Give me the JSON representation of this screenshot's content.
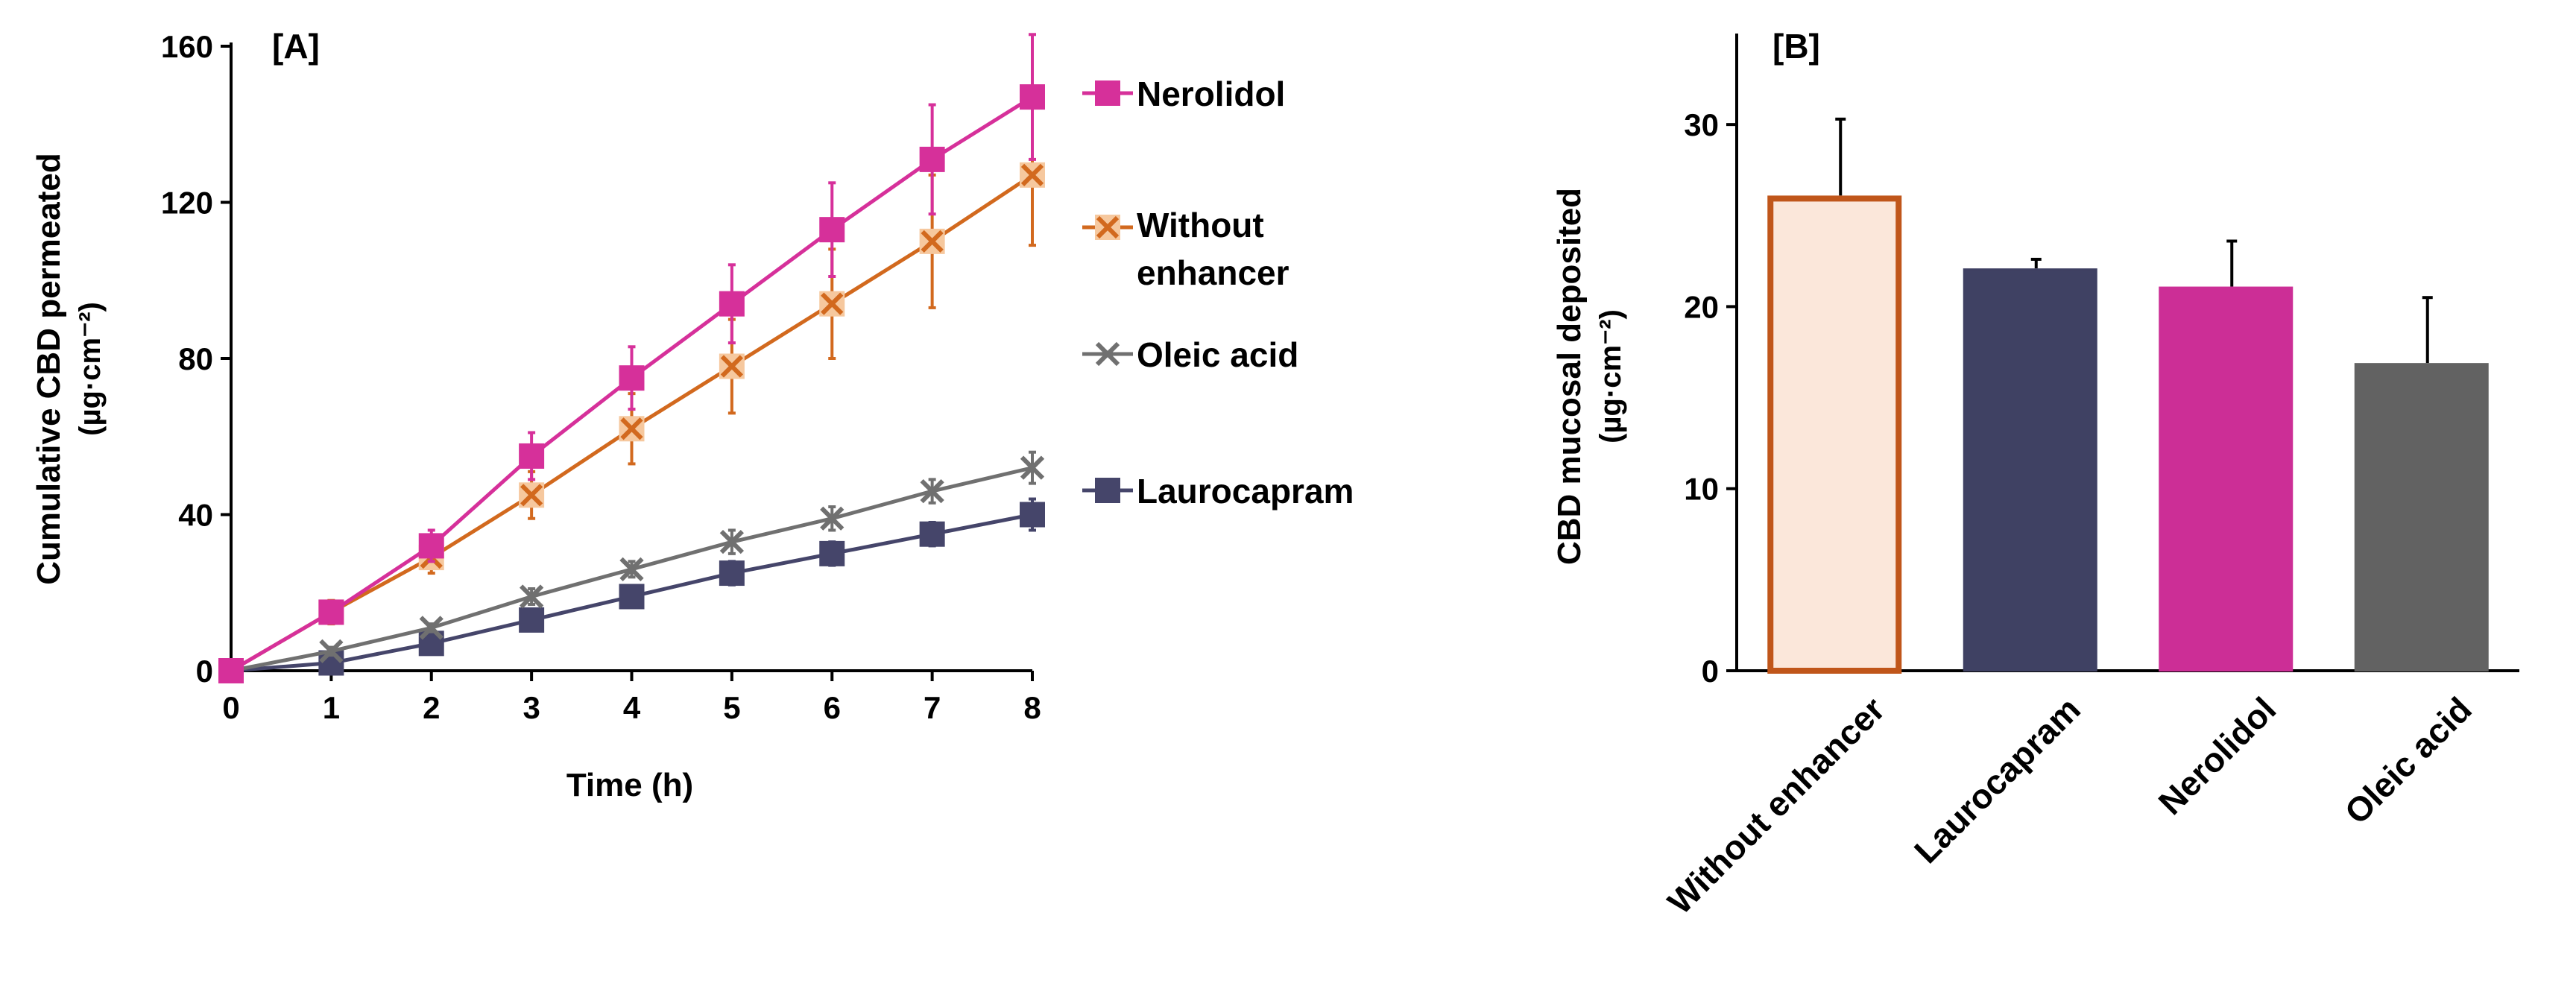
{
  "chart_data": [
    {
      "type": "line",
      "panel_label": "[A]",
      "xlabel": "Time (h)",
      "ylabel": "Cumulative CBD permeated",
      "ylabel_unit": "(µg·cm⁻²)",
      "xlim": [
        0,
        8
      ],
      "ylim": [
        0,
        160
      ],
      "x_ticks": [
        "0",
        "1",
        "2",
        "3",
        "4",
        "5",
        "6",
        "7",
        "8"
      ],
      "y_ticks": [
        "0",
        "40",
        "80",
        "120",
        "160"
      ],
      "x": [
        0,
        1,
        2,
        3,
        4,
        5,
        6,
        7,
        8
      ],
      "grid": false,
      "legend_position": "right",
      "series": [
        {
          "name": "Nerolidol",
          "legend_lines": [
            "Nerolidol"
          ],
          "marker": "square",
          "color": "#D6309A",
          "values": [
            0,
            15,
            32,
            55,
            75,
            94,
            113,
            131,
            147
          ],
          "errors": [
            0,
            2,
            4,
            6,
            8,
            10,
            12,
            14,
            16
          ]
        },
        {
          "name": "Without enhancer",
          "legend_lines": [
            "Without",
            "enhancer"
          ],
          "marker": "x-square",
          "color": "#D2691E",
          "values": [
            0,
            15,
            29,
            45,
            62,
            78,
            94,
            110,
            127
          ],
          "errors": [
            0,
            3,
            4,
            6,
            9,
            12,
            14,
            17,
            18
          ]
        },
        {
          "name": "Oleic acid",
          "legend_lines": [
            "Oleic acid"
          ],
          "marker": "x",
          "color": "#707070",
          "values": [
            0,
            5,
            11,
            19,
            26,
            33,
            39,
            46,
            52
          ],
          "errors": [
            0,
            1,
            1,
            2,
            2,
            3,
            3,
            3,
            4
          ]
        },
        {
          "name": "Laurocapram",
          "legend_lines": [
            "Laurocapram"
          ],
          "marker": "square",
          "color": "#45456A",
          "values": [
            0,
            2,
            7,
            13,
            19,
            25,
            30,
            35,
            40
          ],
          "errors": [
            0,
            1,
            1,
            2,
            2,
            3,
            3,
            3,
            4
          ]
        }
      ]
    },
    {
      "type": "bar",
      "panel_label": "[B]",
      "xlabel": "",
      "ylabel": "CBD mucosal deposited",
      "ylabel_unit": "(µg·cm⁻²)",
      "ylim": [
        0,
        35
      ],
      "y_ticks": [
        "0",
        "10",
        "20",
        "30"
      ],
      "grid": false,
      "categories": [
        "Without enhancer",
        "Laurocapram",
        "Nerolidol",
        "Oleic acid"
      ],
      "values": [
        26.1,
        22.1,
        21.1,
        16.9
      ],
      "errors": [
        4.2,
        0.5,
        2.5,
        3.6
      ],
      "bar_colors": [
        "#FBE7DA",
        "#3F4163",
        "#CC2E96",
        "#626262"
      ],
      "bar_edge_colors": [
        "#C0561A",
        "#3F4163",
        "#CC2E96",
        "#626262"
      ]
    }
  ]
}
